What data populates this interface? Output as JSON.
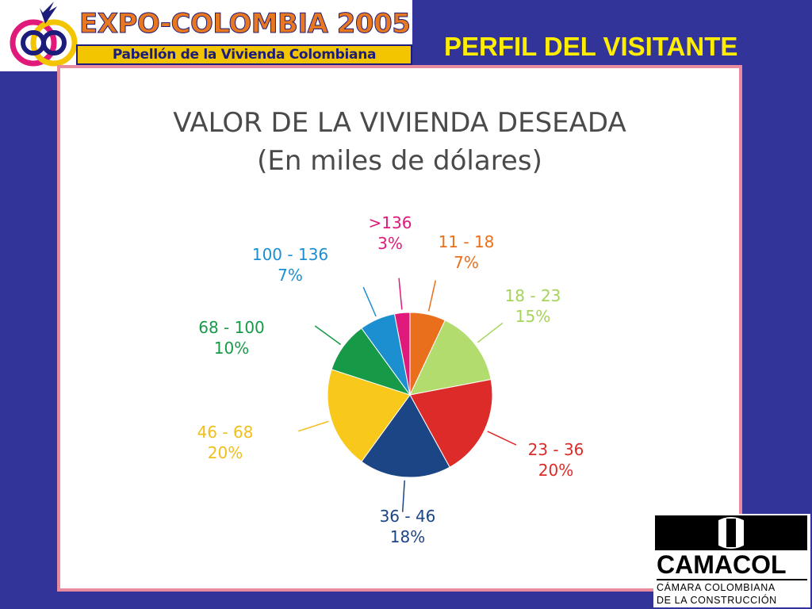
{
  "banner": {
    "title": "EXPO-COLOMBIA 2005",
    "subtitle": "Pabellón de la Vivienda Colombiana"
  },
  "section_title": "PERFIL DEL VISITANTE",
  "brand": {
    "name": "CAMACOL",
    "line1": "CÁMARA COLOMBIANA",
    "line2": "DE LA CONSTRUCCIÓN"
  },
  "chart_data": {
    "type": "pie",
    "title": "VALOR DE LA VIVIENDA DESEADA",
    "subtitle": "(En miles de dólares)",
    "categories": [
      "11 - 18",
      "18 - 23",
      "23 - 36",
      "36 - 46",
      "46 - 68",
      "68 - 100",
      "100 - 136",
      ">136"
    ],
    "values": [
      7,
      15,
      20,
      18,
      20,
      10,
      7,
      3
    ],
    "value_labels": [
      "7%",
      "15%",
      "20%",
      "18%",
      "20%",
      "10%",
      "7%",
      "3%"
    ],
    "colors": [
      "#ea6f1c",
      "#b2dc6d",
      "#dd2b2a",
      "#1b4584",
      "#f8c81a",
      "#169a48",
      "#1b8fd0",
      "#e0197a"
    ],
    "label_colors": [
      "#ea6f1c",
      "#a6d35a",
      "#dd2b2a",
      "#1b4584",
      "#f2be1a",
      "#169a48",
      "#1b8fd0",
      "#e0197a"
    ],
    "legend": "none"
  }
}
